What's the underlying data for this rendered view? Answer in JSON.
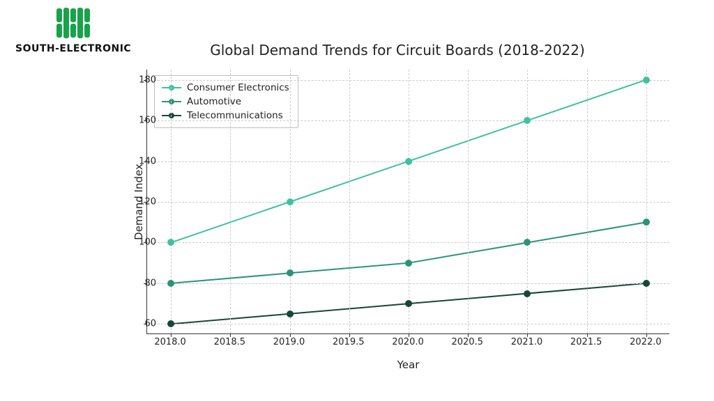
{
  "logo": {
    "text": "SOUTH-ELECTRONIC",
    "color": "#17a34a"
  },
  "chart": {
    "type": "line",
    "title": "Global Demand Trends for Circuit Boards (2018-2022)",
    "title_fontsize": 20,
    "xlabel": "Year",
    "ylabel": "Demand Index",
    "label_fontsize": 15,
    "tick_fontsize": 13,
    "background_color": "#ffffff",
    "grid_color": "#cccccc",
    "grid_dash": true,
    "xlim": [
      2017.8,
      2022.2
    ],
    "ylim": [
      55,
      185
    ],
    "xticks": [
      2018.0,
      2018.5,
      2019.0,
      2019.5,
      2020.0,
      2020.5,
      2021.0,
      2021.5,
      2022.0
    ],
    "xtick_labels": [
      "2018.0",
      "2018.5",
      "2019.0",
      "2019.5",
      "2020.0",
      "2020.5",
      "2021.0",
      "2021.5",
      "2022.0"
    ],
    "yticks": [
      60,
      80,
      100,
      120,
      140,
      160,
      180
    ],
    "ytick_labels": [
      "60",
      "80",
      "100",
      "120",
      "140",
      "160",
      "180"
    ],
    "x_values": [
      2018,
      2019,
      2020,
      2021,
      2022
    ],
    "series": [
      {
        "name": "Consumer Electronics",
        "color": "#3fc1a0",
        "values": [
          100,
          120,
          140,
          160,
          180
        ],
        "line_width": 2,
        "marker": "circle",
        "marker_size": 10
      },
      {
        "name": "Automotive",
        "color": "#2a9478",
        "values": [
          80,
          85,
          90,
          100,
          110
        ],
        "line_width": 2,
        "marker": "circle",
        "marker_size": 10
      },
      {
        "name": "Telecommunications",
        "color": "#16463a",
        "values": [
          60,
          65,
          70,
          75,
          80
        ],
        "line_width": 2,
        "marker": "circle",
        "marker_size": 10
      }
    ],
    "legend": {
      "position": "upper-left",
      "border_color": "#bfbfbf",
      "bg_color": "#ffffff"
    }
  }
}
